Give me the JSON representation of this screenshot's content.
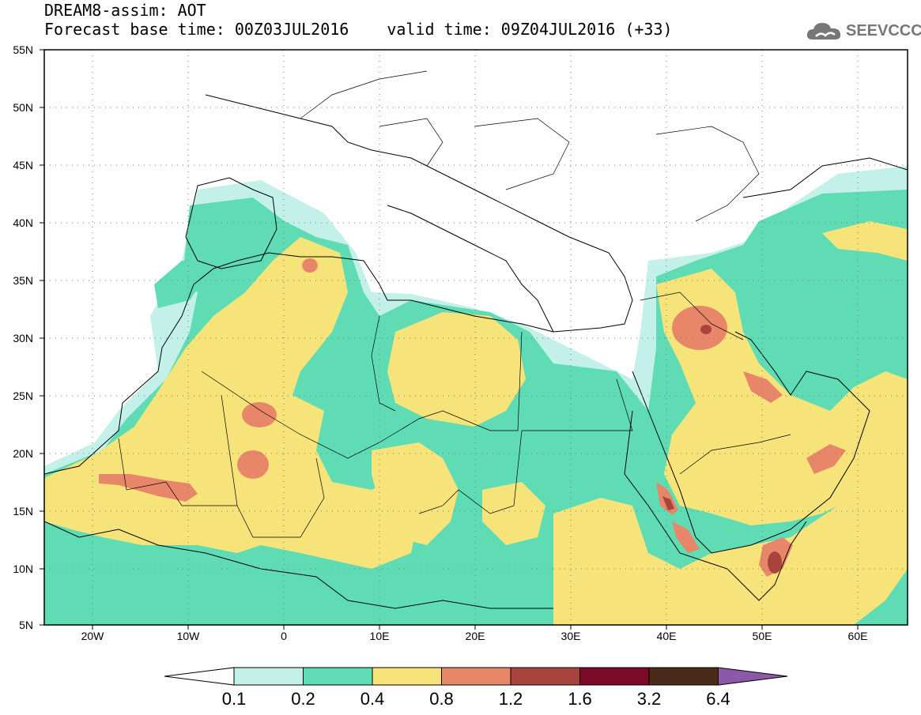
{
  "header": {
    "title": "DREAM8-assim: AOT",
    "base_time": "Forecast base time: 00Z03JUL2016",
    "valid_time": "valid time: 09Z04JUL2016 (+33)"
  },
  "logo": {
    "text": "SEEVCCC",
    "icon": "cloud-icon",
    "color": "#777777"
  },
  "map": {
    "lon_range": [
      -25,
      65
    ],
    "lat_range": [
      5,
      55
    ],
    "grid": "dotted",
    "lat_ticks": [
      "55N",
      "50N",
      "45N",
      "40N",
      "35N",
      "30N",
      "25N",
      "20N",
      "15N",
      "10N",
      "5N"
    ],
    "lon_ticks": [
      "20W",
      "10W",
      "0",
      "10E",
      "20E",
      "30E",
      "40E",
      "50E",
      "60E"
    ]
  },
  "colorbar": {
    "labels": [
      "0.1",
      "0.2",
      "0.4",
      "0.8",
      "1.2",
      "1.6",
      "3.2",
      "6.4"
    ],
    "colors": [
      "#c4f0ea",
      "#5fdcb4",
      "#f6e47a",
      "#e8866a",
      "#a8443c",
      "#7a0a28",
      "#4a2a18"
    ],
    "under_color": "#ffffff",
    "over_color": "#8a5aa8"
  }
}
